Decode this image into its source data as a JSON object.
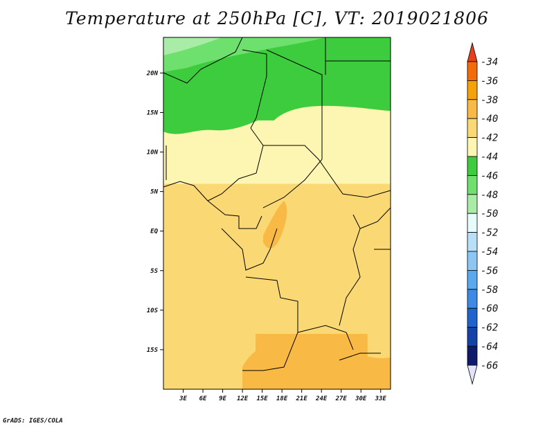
{
  "chart_data": {
    "type": "heatmap",
    "title": "Temperature at 250hPa [C], VT: 2019021806",
    "x_ticks": [
      "3E",
      "6E",
      "9E",
      "12E",
      "15E",
      "18E",
      "21E",
      "24E",
      "27E",
      "30E",
      "33E"
    ],
    "y_ticks": [
      "20N",
      "15N",
      "10N",
      "5N",
      "EQ",
      "5S",
      "10S",
      "15S"
    ],
    "x_range_deg_east": [
      0,
      34.5
    ],
    "y_range_deg": [
      -20,
      24.5
    ],
    "colorbar": {
      "levels": [
        "-34",
        "-36",
        "-38",
        "-40",
        "-42",
        "-44",
        "-46",
        "-48",
        "-50",
        "-52",
        "-54",
        "-56",
        "-58",
        "-60",
        "-62",
        "-64",
        "-66"
      ],
      "colors": [
        "#e8401c",
        "#f46b0a",
        "#f5a10a",
        "#f8b945",
        "#fad874",
        "#fdf5b2",
        "#3dcc3d",
        "#6de06d",
        "#a8eca8",
        "#e6fbfa",
        "#b7dff8",
        "#8cc6f4",
        "#5aa8ee",
        "#3a8ae6",
        "#1f63cd",
        "#1442a7",
        "#0e1a6a",
        "#e3e3f7"
      ]
    },
    "regions": [
      {
        "lon_min": 0,
        "lon_max": 34.5,
        "lat_min": 18,
        "lat_max": 24.5,
        "value_c": -46
      },
      {
        "lon_min": 0,
        "lon_max": 13,
        "lat_min": 21.5,
        "lat_max": 24.5,
        "value_c": -48
      },
      {
        "lon_min": 0,
        "lon_max": 34.5,
        "lat_min": 12,
        "lat_max": 18,
        "value_c": -45
      },
      {
        "lon_min": 0,
        "lon_max": 34.5,
        "lat_min": 6,
        "lat_max": 14,
        "value_c": -42
      },
      {
        "lon_min": 0,
        "lon_max": 34.5,
        "lat_min": -20,
        "lat_max": 6,
        "value_c": -41
      },
      {
        "lon_min": 14,
        "lon_max": 31,
        "lat_min": -20,
        "lat_max": -13,
        "value_c": -39
      }
    ]
  },
  "credit": "GrADS: IGES/COLA"
}
